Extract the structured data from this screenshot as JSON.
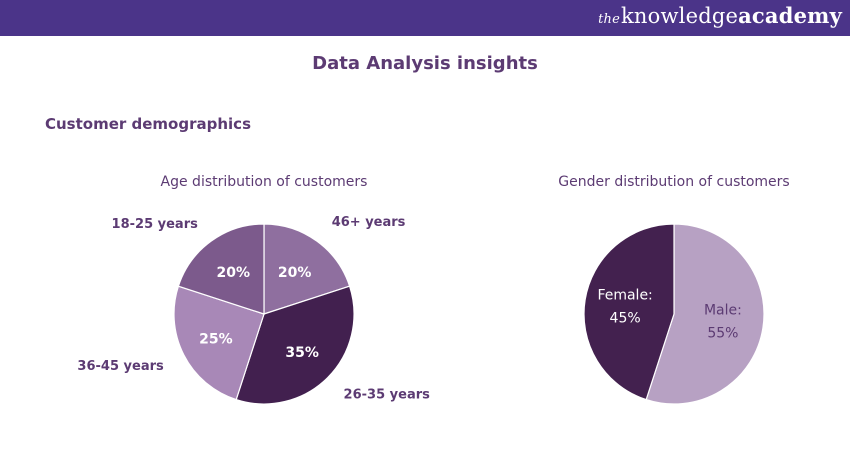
{
  "brand": {
    "prefix": "the",
    "name": "knowledge",
    "suffix": "academy"
  },
  "page_title": "Data Analysis insights",
  "section_title": "Customer demographics",
  "colors": {
    "header": "#4b3489",
    "text": "#5c3b73"
  },
  "chart_data": [
    {
      "type": "pie",
      "title": "Age distribution of customers",
      "slices": [
        {
          "name": "46+ years",
          "value": 20,
          "value_label": "20%",
          "color": "#8f6f9f"
        },
        {
          "name": "26-35 years",
          "value": 35,
          "value_label": "35%",
          "color": "#42204f"
        },
        {
          "name": "36-45 years",
          "value": 25,
          "value_label": "25%",
          "color": "#a888b7"
        },
        {
          "name": "18-25 years",
          "value": 20,
          "value_label": "20%",
          "color": "#7c5a8c"
        }
      ]
    },
    {
      "type": "pie",
      "title": "Gender distribution of customers",
      "slices": [
        {
          "name": "Male:",
          "value": 55,
          "value_label": "55%",
          "color": "#b7a1c3"
        },
        {
          "name": "Female:",
          "value": 45,
          "value_label": "45%",
          "color": "#43214f"
        }
      ]
    }
  ]
}
